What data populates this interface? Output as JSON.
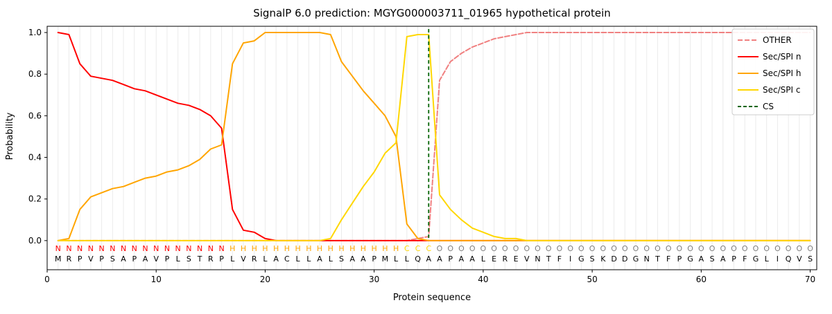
{
  "chart_data": {
    "type": "line",
    "title": "SignalP 6.0 prediction: MGYG000003711_01965 hypothetical protein",
    "xlabel": "Protein sequence",
    "ylabel": "Probability",
    "xlim": [
      0,
      70.6
    ],
    "ylim": [
      -0.14,
      1.03
    ],
    "x_ticks": [
      0,
      10,
      20,
      30,
      40,
      50,
      60,
      70
    ],
    "y_ticks": [
      0.0,
      0.2,
      0.4,
      0.6,
      0.8,
      1.0
    ],
    "grid": "vertical line per residue, light gray",
    "legend_position": "upper right",
    "x": [
      1,
      2,
      3,
      4,
      5,
      6,
      7,
      8,
      9,
      10,
      11,
      12,
      13,
      14,
      15,
      16,
      17,
      18,
      19,
      20,
      21,
      22,
      23,
      24,
      25,
      26,
      27,
      28,
      29,
      30,
      31,
      32,
      33,
      34,
      35,
      36,
      37,
      38,
      39,
      40,
      41,
      42,
      43,
      44,
      45,
      46,
      47,
      48,
      49,
      50,
      51,
      52,
      53,
      54,
      55,
      56,
      57,
      58,
      59,
      60,
      61,
      62,
      63,
      64,
      65,
      66,
      67,
      68,
      69,
      70
    ],
    "series": [
      {
        "name": "OTHER",
        "color": "#f08080",
        "style": "dashed",
        "values": [
          0,
          0,
          0,
          0,
          0,
          0,
          0,
          0,
          0,
          0,
          0,
          0,
          0,
          0,
          0,
          0,
          0,
          0,
          0,
          0,
          0,
          0,
          0,
          0,
          0,
          0,
          0,
          0,
          0,
          0,
          0,
          0,
          0,
          0.01,
          0.02,
          0.77,
          0.86,
          0.9,
          0.93,
          0.95,
          0.97,
          0.98,
          0.99,
          1.0,
          1.0,
          1.0,
          1.0,
          1.0,
          1.0,
          1.0,
          1.0,
          1.0,
          1.0,
          1.0,
          1.0,
          1.0,
          1.0,
          1.0,
          1.0,
          1.0,
          1.0,
          1.0,
          1.0,
          1.0,
          1.0,
          1.0,
          1.0,
          1.0,
          1.0,
          1.0
        ]
      },
      {
        "name": "Sec/SPI n",
        "color": "#ff0000",
        "style": "solid",
        "values": [
          1.0,
          0.99,
          0.85,
          0.79,
          0.78,
          0.77,
          0.75,
          0.73,
          0.72,
          0.7,
          0.68,
          0.66,
          0.65,
          0.63,
          0.6,
          0.54,
          0.15,
          0.05,
          0.04,
          0.01,
          0,
          0,
          0,
          0,
          0,
          0,
          0,
          0,
          0,
          0,
          0,
          0,
          0,
          0,
          0,
          0,
          0,
          0,
          0,
          0,
          0,
          0,
          0,
          0,
          0,
          0,
          0,
          0,
          0,
          0,
          0,
          0,
          0,
          0,
          0,
          0,
          0,
          0,
          0,
          0,
          0,
          0,
          0,
          0,
          0,
          0,
          0,
          0,
          0,
          0
        ]
      },
      {
        "name": "Sec/SPI h",
        "color": "#ffa500",
        "style": "solid",
        "values": [
          0,
          0.01,
          0.15,
          0.21,
          0.23,
          0.25,
          0.26,
          0.28,
          0.3,
          0.31,
          0.33,
          0.34,
          0.36,
          0.39,
          0.44,
          0.46,
          0.85,
          0.95,
          0.96,
          1.0,
          1.0,
          1.0,
          1.0,
          1.0,
          1.0,
          0.99,
          0.86,
          0.79,
          0.72,
          0.66,
          0.6,
          0.5,
          0.08,
          0.01,
          0,
          0,
          0,
          0,
          0,
          0,
          0,
          0,
          0,
          0,
          0,
          0,
          0,
          0,
          0,
          0,
          0,
          0,
          0,
          0,
          0,
          0,
          0,
          0,
          0,
          0,
          0,
          0,
          0,
          0,
          0,
          0,
          0,
          0,
          0,
          0
        ]
      },
      {
        "name": "Sec/SPI c",
        "color": "#ffd700",
        "style": "solid",
        "values": [
          0,
          0,
          0,
          0,
          0,
          0,
          0,
          0,
          0,
          0,
          0,
          0,
          0,
          0,
          0,
          0,
          0,
          0,
          0,
          0,
          0,
          0,
          0,
          0,
          0,
          0.01,
          0.1,
          0.18,
          0.26,
          0.33,
          0.42,
          0.47,
          0.98,
          0.99,
          0.99,
          0.22,
          0.15,
          0.1,
          0.06,
          0.04,
          0.02,
          0.01,
          0.01,
          0,
          0,
          0,
          0,
          0,
          0,
          0,
          0,
          0,
          0,
          0,
          0,
          0,
          0,
          0,
          0,
          0,
          0,
          0,
          0,
          0,
          0,
          0,
          0,
          0,
          0,
          0
        ]
      }
    ],
    "cs_marker": {
      "name": "CS",
      "x": 35,
      "color": "#006400",
      "style": "dashed"
    },
    "residues": "MRPVPSAPAVPLSTRPLVRLACLLALSAAPMLLQAAPAALEREVNTFIGSKDDGNTFPGASAPFGLIQVS",
    "region_labels": "NNNNNNNNNNNNNNNNHHHHHHHHHHHHHHHHCCCOOOOOOOOOOOOOOOOOOOOOOOOOOOOOOOOOOO",
    "region_colors": {
      "N": "#ff0000",
      "H": "#ffa500",
      "C": "#ffd700",
      "O": "#7f7f7f"
    },
    "residue_color": "#000000",
    "grid_color": "#ebebeb",
    "spine_color": "#000000"
  }
}
